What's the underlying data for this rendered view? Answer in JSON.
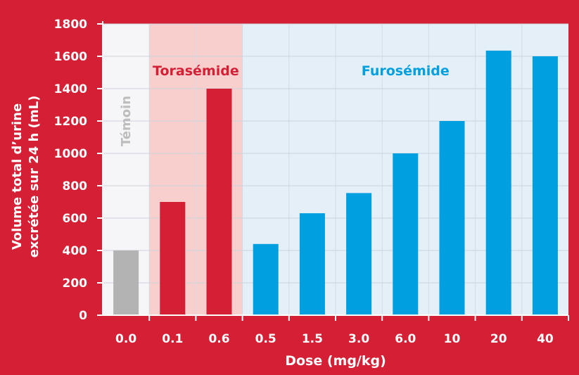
{
  "colors": {
    "background": "#d41f35",
    "control": "#b3b3b3",
    "torasemide": "#d41f35",
    "furosemide": "#009fdf",
    "region_control": "#f6f6f8",
    "region_torasemide": "#f8cfcc",
    "region_furosemide": "#e5eff8",
    "text_white": "#ffffff"
  },
  "chart_data": {
    "type": "bar",
    "xlabel": "Dose (mg/kg)",
    "ylabel": [
      "Volume total d’urine",
      "excrétée sur 24 h  (mL)"
    ],
    "ylim": [
      0,
      1800
    ],
    "yticks": [
      0,
      200,
      400,
      600,
      800,
      1000,
      1200,
      1400,
      1600,
      1800
    ],
    "grid": true,
    "categories": [
      "0.0",
      "0.1",
      "0.6",
      "0.5",
      "1.5",
      "3.0",
      "6.0",
      "10",
      "20",
      "40"
    ],
    "values": [
      400,
      700,
      1400,
      440,
      630,
      755,
      1000,
      1200,
      1635,
      1600
    ],
    "groups": [
      {
        "name": "Témoin",
        "start": 0,
        "end": 0,
        "color_key": "control",
        "region_key": "region_control",
        "label_color": "#bdbdbd",
        "vertical": true
      },
      {
        "name": "Torasémide",
        "start": 1,
        "end": 2,
        "color_key": "torasemide",
        "region_key": "region_torasemide",
        "label_color": "#d41f35",
        "vertical": false
      },
      {
        "name": "Furosémide",
        "start": 3,
        "end": 9,
        "color_key": "furosemide",
        "region_key": "region_furosemide",
        "label_color": "#009fdf",
        "vertical": false
      }
    ]
  }
}
